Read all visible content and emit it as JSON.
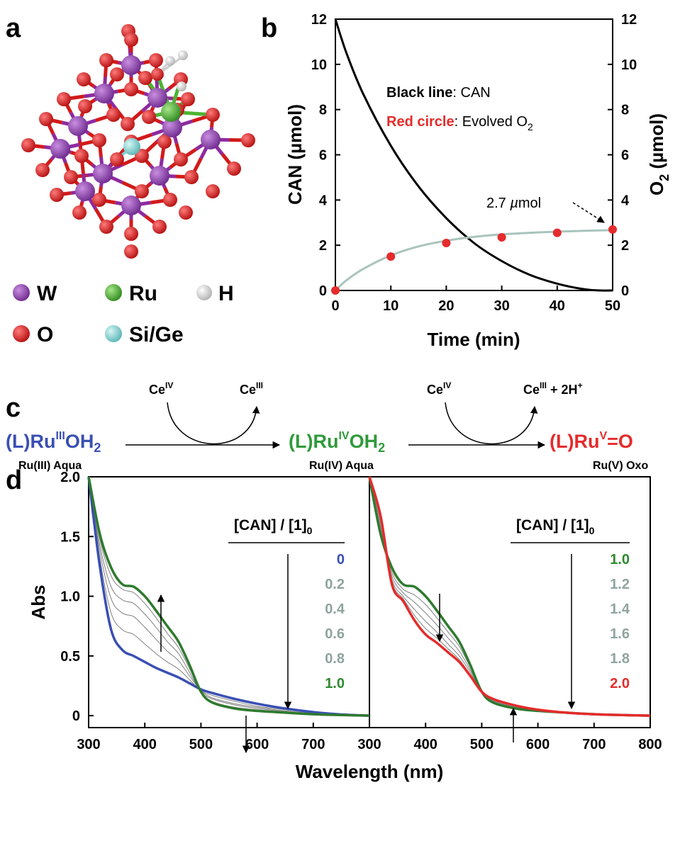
{
  "panel_labels": {
    "a": "a",
    "b": "b",
    "c": "c",
    "d": "d"
  },
  "panel_a": {
    "legend": [
      {
        "symbol": "W",
        "color": "#8a3fa8"
      },
      {
        "symbol": "Ru",
        "color": "#4db533"
      },
      {
        "symbol": "H",
        "color": "#e8e8e8"
      },
      {
        "symbol": "O",
        "color": "#e01e1e"
      },
      {
        "symbol": "Si/Ge",
        "color": "#7fd3d3"
      }
    ]
  },
  "panel_b": {
    "ylabel_left": "CAN (µmol)",
    "ylabel_right_main": "O",
    "ylabel_right_sub": "2",
    "ylabel_right_unit": " (µmol)",
    "xlabel": "Time (min)",
    "legend_black_bold": "Black line",
    "legend_black_rest": ": CAN",
    "legend_red_bold": "Red circle",
    "legend_red_rest": ": Evolved O",
    "legend_red_sub": "2",
    "annotation_num": "2.7 ",
    "annotation_mu": "µ",
    "annotation_unit": "mol",
    "colors": {
      "can_line": "#000000",
      "o2_fit": "#a9c4bd",
      "o2_points": "#e52b2b"
    }
  },
  "panel_c": {
    "ce4": "IV",
    "ce3": "III",
    "ce_base": "Ce",
    "ce3_plus": " + 2H",
    "plus_sup": "+",
    "species": [
      {
        "pre": "(L)Ru",
        "sup": "III",
        "post": "OH",
        "sub": "2",
        "name": "Ru(III) Aqua",
        "color": "#3a4fb3"
      },
      {
        "pre": "(L)Ru",
        "sup": "IV",
        "post": "OH",
        "sub": "2",
        "name": "Ru(IV) Aqua",
        "color": "#2f9a3a"
      },
      {
        "pre": "(L)Ru",
        "sup": "V",
        "post": "=O",
        "sub": "",
        "name": "Ru(V) Oxo",
        "color": "#e52b2b"
      }
    ]
  },
  "panel_d": {
    "ylabel": "Abs",
    "xlabel": "Wavelength (nm)",
    "ratio_header": "[CAN] / [1]",
    "ratio_header_sub": "0",
    "left_ratios": [
      {
        "text": "0",
        "color": "#3a4fb3"
      },
      {
        "text": "0.2",
        "color": "#8fa39f"
      },
      {
        "text": "0.4",
        "color": "#8fa39f"
      },
      {
        "text": "0.6",
        "color": "#8fa39f"
      },
      {
        "text": "0.8",
        "color": "#8fa39f"
      },
      {
        "text": "1.0",
        "color": "#2f8a2f"
      }
    ],
    "right_ratios": [
      {
        "text": "1.0",
        "color": "#2f8a2f"
      },
      {
        "text": "1.2",
        "color": "#8fa39f"
      },
      {
        "text": "1.4",
        "color": "#8fa39f"
      },
      {
        "text": "1.6",
        "color": "#8fa39f"
      },
      {
        "text": "1.8",
        "color": "#8fa39f"
      },
      {
        "text": "2.0",
        "color": "#e52b2b"
      }
    ]
  },
  "chart_data": [
    {
      "type": "line",
      "panel": "b",
      "xlabel": "Time (min)",
      "ylabel": "CAN (µmol)",
      "y2label": "O2 (µmol)",
      "xlim": [
        0,
        50
      ],
      "ylim": [
        0,
        12
      ],
      "y2lim": [
        0,
        12
      ],
      "xticks": [
        0,
        10,
        20,
        30,
        40,
        50
      ],
      "yticks": [
        0,
        2,
        4,
        6,
        8,
        10,
        12
      ],
      "series": [
        {
          "name": "CAN",
          "style": "line",
          "x": [
            0,
            2,
            5,
            10,
            15,
            20,
            25,
            30,
            35,
            40,
            45,
            48,
            50
          ],
          "y": [
            12,
            10.5,
            8.7,
            6.4,
            4.6,
            3.2,
            2.1,
            1.3,
            0.7,
            0.3,
            0.05,
            0,
            0
          ]
        },
        {
          "name": "Evolved O2 (fit)",
          "style": "line",
          "x": [
            0,
            2,
            5,
            10,
            15,
            20,
            25,
            30,
            35,
            40,
            45,
            50
          ],
          "y": [
            0,
            0.45,
            0.95,
            1.55,
            1.95,
            2.2,
            2.37,
            2.48,
            2.55,
            2.6,
            2.64,
            2.67
          ]
        },
        {
          "name": "Evolved O2",
          "style": "points",
          "x": [
            0,
            10,
            20,
            30,
            40,
            50
          ],
          "y": [
            0,
            1.5,
            2.1,
            2.35,
            2.55,
            2.7
          ]
        }
      ],
      "annotation": {
        "text": "2.7 µmol",
        "x": 50,
        "y": 2.7
      }
    },
    {
      "type": "line",
      "panel": "d-left",
      "xlabel": "Wavelength (nm)",
      "ylabel": "Abs",
      "xlim": [
        300,
        800
      ],
      "ylim": [
        -0.1,
        2.0
      ],
      "xticks": [
        300,
        400,
        500,
        600,
        700
      ],
      "yticks": [
        0,
        0.5,
        1.0,
        1.5,
        2.0
      ],
      "x": [
        300,
        320,
        340,
        360,
        380,
        400,
        420,
        440,
        460,
        480,
        500,
        520,
        560,
        600,
        650,
        700,
        750,
        800
      ],
      "series": [
        {
          "name": "0",
          "color": "#3a4fb3",
          "y": [
            2.0,
            1.25,
            0.72,
            0.55,
            0.5,
            0.45,
            0.4,
            0.36,
            0.32,
            0.27,
            0.22,
            0.19,
            0.14,
            0.1,
            0.06,
            0.03,
            0.01,
            0.0
          ]
        },
        {
          "name": "0.2",
          "color": "#808080",
          "y": [
            2.0,
            1.32,
            0.86,
            0.72,
            0.68,
            0.6,
            0.52,
            0.45,
            0.39,
            0.3,
            0.21,
            0.17,
            0.12,
            0.08,
            0.05,
            0.025,
            0.01,
            0.0
          ]
        },
        {
          "name": "0.4",
          "color": "#808080",
          "y": [
            2.0,
            1.38,
            0.98,
            0.86,
            0.83,
            0.74,
            0.64,
            0.54,
            0.46,
            0.33,
            0.21,
            0.15,
            0.1,
            0.07,
            0.04,
            0.02,
            0.008,
            0.0
          ]
        },
        {
          "name": "0.6",
          "color": "#808080",
          "y": [
            2.0,
            1.43,
            1.08,
            0.97,
            0.94,
            0.85,
            0.74,
            0.62,
            0.52,
            0.36,
            0.2,
            0.14,
            0.09,
            0.06,
            0.035,
            0.018,
            0.007,
            0.0
          ]
        },
        {
          "name": "0.8",
          "color": "#808080",
          "y": [
            2.0,
            1.48,
            1.17,
            1.06,
            1.03,
            0.94,
            0.82,
            0.69,
            0.57,
            0.39,
            0.2,
            0.12,
            0.07,
            0.05,
            0.03,
            0.015,
            0.006,
            0.0
          ]
        },
        {
          "name": "1.0",
          "color": "#2f7a2f",
          "y": [
            2.0,
            1.52,
            1.24,
            1.1,
            1.08,
            1.0,
            0.88,
            0.75,
            0.62,
            0.42,
            0.2,
            0.11,
            0.06,
            0.04,
            0.025,
            0.012,
            0.005,
            0.0
          ]
        }
      ]
    },
    {
      "type": "line",
      "panel": "d-right",
      "xlabel": "Wavelength (nm)",
      "ylabel": "Abs",
      "xlim": [
        300,
        800
      ],
      "ylim": [
        -0.1,
        2.0
      ],
      "xticks": [
        300,
        400,
        500,
        600,
        700,
        800
      ],
      "x": [
        300,
        320,
        340,
        360,
        380,
        400,
        420,
        440,
        460,
        480,
        500,
        520,
        560,
        600,
        650,
        700,
        750,
        800
      ],
      "series": [
        {
          "name": "1.0",
          "color": "#2f7a2f",
          "y": [
            2.0,
            1.52,
            1.24,
            1.1,
            1.08,
            1.0,
            0.88,
            0.75,
            0.62,
            0.42,
            0.2,
            0.11,
            0.06,
            0.04,
            0.025,
            0.012,
            0.005,
            0.0
          ]
        },
        {
          "name": "1.2",
          "color": "#808080",
          "y": [
            2.0,
            1.55,
            1.2,
            1.06,
            1.01,
            0.93,
            0.82,
            0.7,
            0.58,
            0.4,
            0.2,
            0.12,
            0.065,
            0.04,
            0.025,
            0.012,
            0.005,
            0.0
          ]
        },
        {
          "name": "1.4",
          "color": "#808080",
          "y": [
            2.0,
            1.58,
            1.17,
            1.03,
            0.95,
            0.86,
            0.76,
            0.65,
            0.54,
            0.38,
            0.2,
            0.125,
            0.07,
            0.045,
            0.025,
            0.012,
            0.005,
            0.0
          ]
        },
        {
          "name": "1.6",
          "color": "#808080",
          "y": [
            2.0,
            1.61,
            1.14,
            1.0,
            0.89,
            0.79,
            0.7,
            0.6,
            0.5,
            0.36,
            0.2,
            0.13,
            0.075,
            0.045,
            0.025,
            0.012,
            0.005,
            0.0
          ]
        },
        {
          "name": "1.8",
          "color": "#808080",
          "y": [
            2.0,
            1.64,
            1.12,
            0.98,
            0.84,
            0.73,
            0.65,
            0.56,
            0.47,
            0.34,
            0.2,
            0.135,
            0.08,
            0.05,
            0.025,
            0.012,
            0.005,
            0.0
          ]
        },
        {
          "name": "2.0",
          "color": "#e52b2b",
          "y": [
            2.0,
            1.67,
            1.1,
            0.96,
            0.8,
            0.68,
            0.61,
            0.53,
            0.45,
            0.33,
            0.2,
            0.14,
            0.085,
            0.05,
            0.025,
            0.012,
            0.005,
            0.0
          ]
        }
      ]
    }
  ]
}
